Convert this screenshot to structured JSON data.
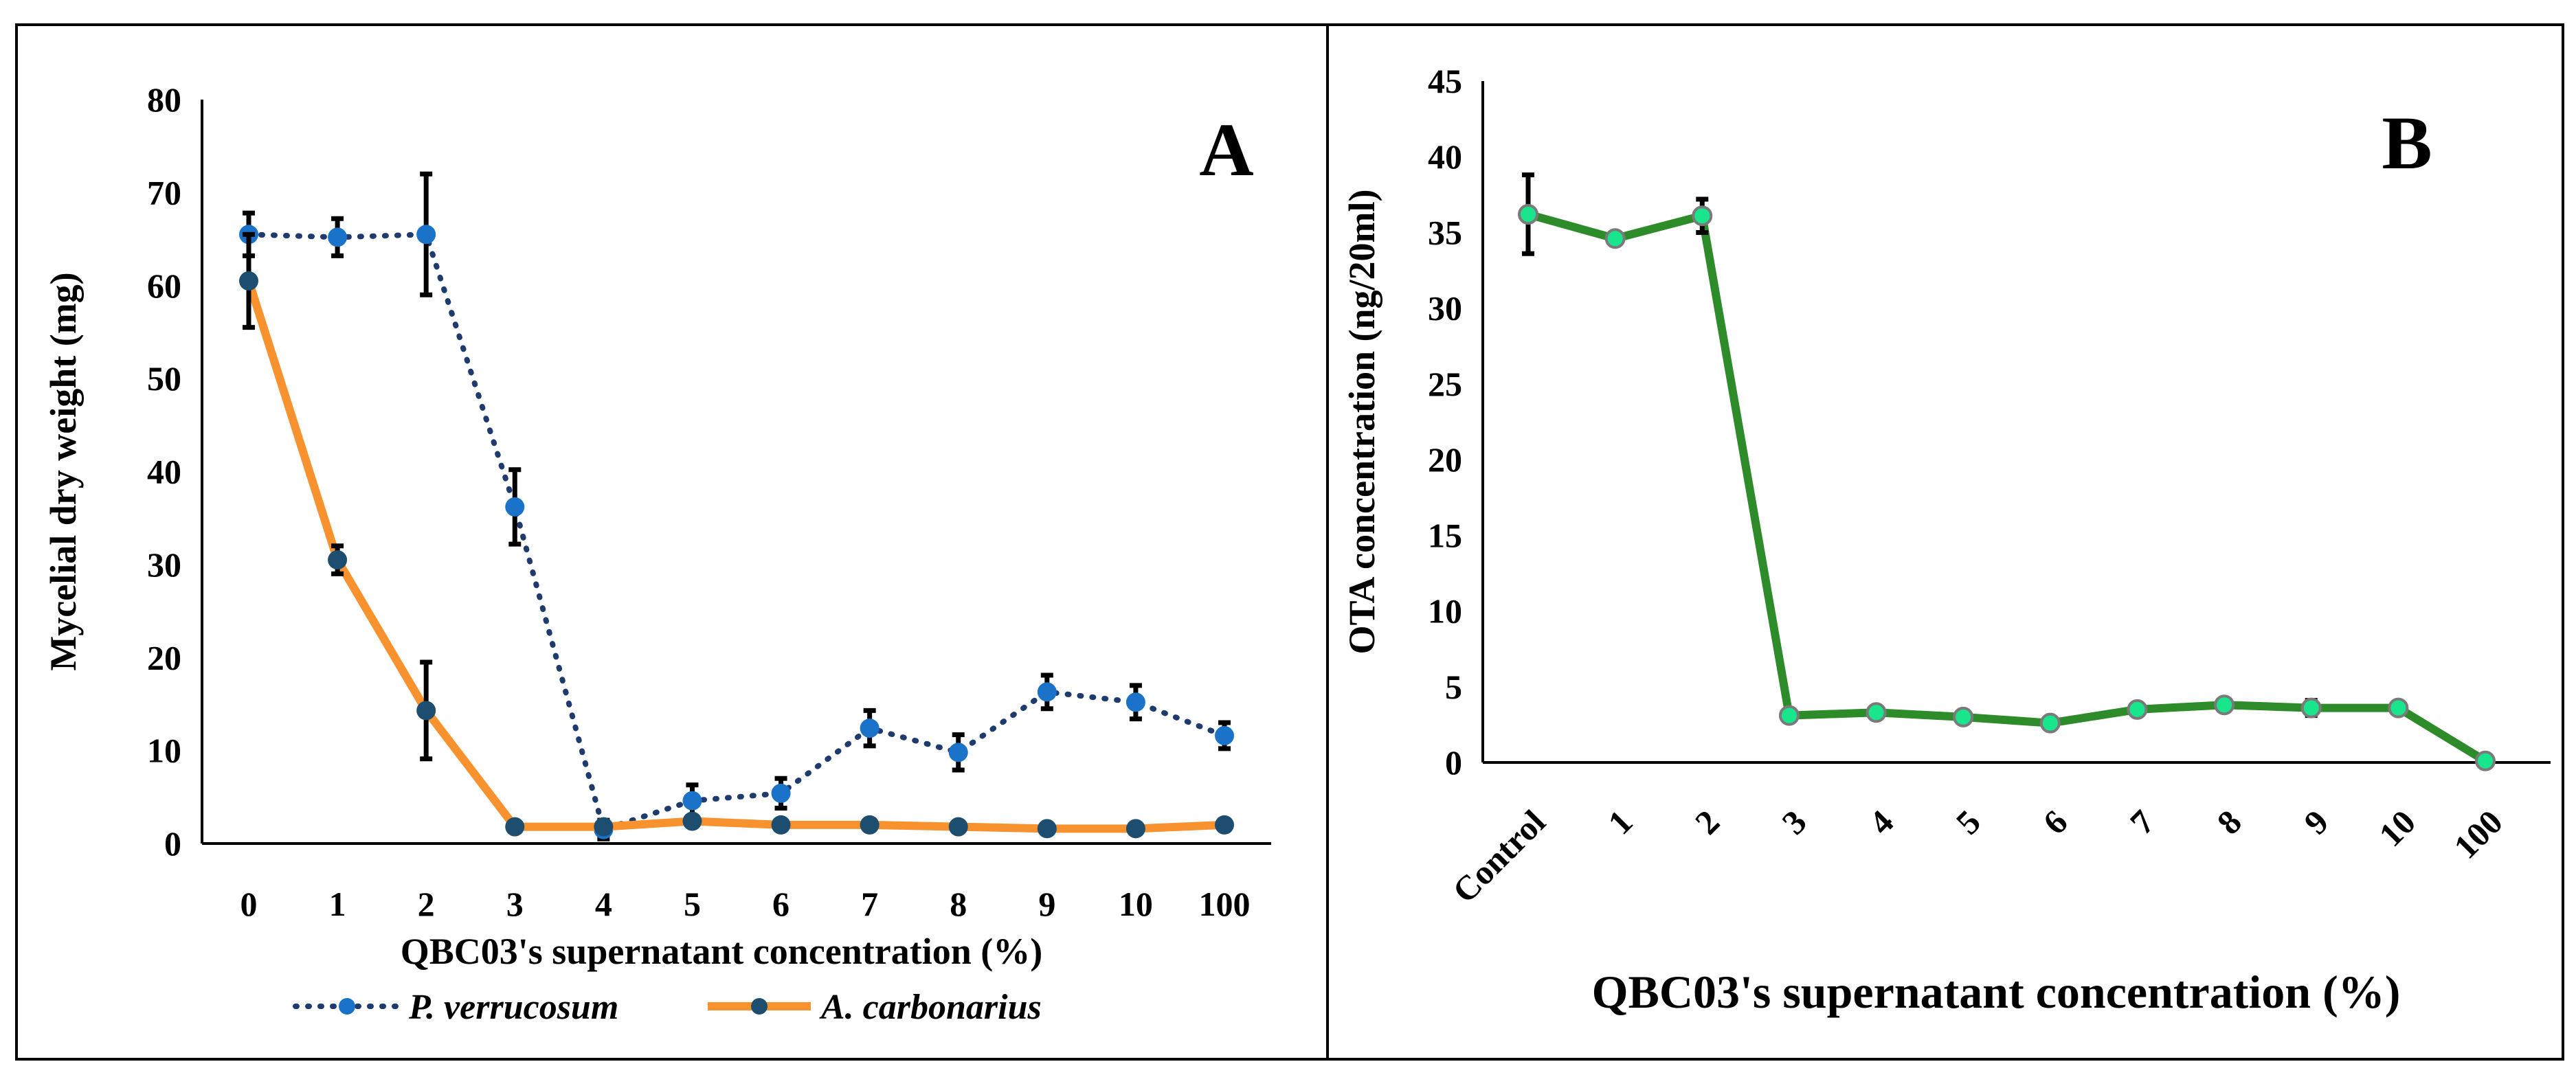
{
  "chart_data": [
    {
      "panel": "A",
      "type": "line",
      "ylabel": "Mycelial dry weight (mg)",
      "xlabel": "QBC03's supernatant concentration (%)",
      "categories": [
        "0",
        "1",
        "2",
        "3",
        "4",
        "5",
        "6",
        "7",
        "8",
        "9",
        "10",
        "100"
      ],
      "ylim": [
        0,
        80
      ],
      "yticks": [
        0,
        10,
        20,
        30,
        40,
        50,
        60,
        70,
        80
      ],
      "legend_position": "bottom",
      "series": [
        {
          "name": "P. verrucosum",
          "style": "dotted",
          "color": "#1f3b6e",
          "marker_color": "#1a73c9",
          "values": [
            65.5,
            65.2,
            65.5,
            36.2,
            1.5,
            4.6,
            5.4,
            12.4,
            9.8,
            16.3,
            15.2,
            11.6
          ],
          "errors": [
            2.3,
            2.0,
            6.5,
            4.0,
            1.0,
            1.7,
            1.6,
            1.9,
            1.9,
            1.8,
            1.8,
            1.4
          ]
        },
        {
          "name": "A. carbonarius",
          "style": "solid",
          "color": "#f7922f",
          "marker_color": "#1d4e70",
          "values": [
            60.5,
            30.5,
            14.3,
            1.8,
            1.8,
            2.4,
            2.0,
            2.0,
            1.8,
            1.6,
            1.6,
            2.0
          ],
          "errors": [
            5.0,
            1.5,
            5.2,
            0.2,
            0.2,
            0.3,
            0.3,
            0.2,
            0.2,
            0.2,
            0.2,
            0.2
          ]
        }
      ]
    },
    {
      "panel": "B",
      "type": "line",
      "ylabel": "OTA concentration (ng/20ml)",
      "xlabel": "QBC03's supernatant concentration (%)",
      "categories": [
        "Control",
        "1",
        "2",
        "3",
        "4",
        "5",
        "6",
        "7",
        "8",
        "9",
        "10",
        "100"
      ],
      "ylim": [
        0,
        45
      ],
      "yticks": [
        0,
        5,
        10,
        15,
        20,
        25,
        30,
        35,
        40,
        45
      ],
      "series": [
        {
          "name": "OTA",
          "style": "solid",
          "color": "#2e8b2a",
          "marker_color": "#19e68c",
          "values": [
            36.2,
            34.6,
            36.1,
            3.1,
            3.3,
            3.0,
            2.6,
            3.5,
            3.8,
            3.6,
            3.6,
            0.1
          ],
          "errors": [
            2.6,
            0,
            1.1,
            0.3,
            0.1,
            0.1,
            0.2,
            0.1,
            0.1,
            0.5,
            0.1,
            0
          ]
        }
      ]
    }
  ]
}
